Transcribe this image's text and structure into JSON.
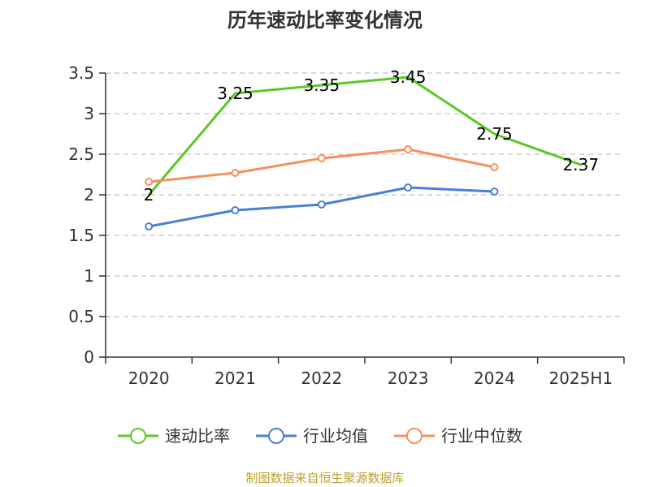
{
  "chart_data": {
    "type": "line",
    "title": "历年速动比率变化情况",
    "xlabel": "",
    "ylabel": "",
    "categories": [
      "2020",
      "2021",
      "2022",
      "2023",
      "2024",
      "2025H1"
    ],
    "ylim": [
      0,
      3.5
    ],
    "yticks": [
      "0",
      "0.5",
      "1",
      "1.5",
      "2",
      "2.5",
      "3",
      "3.5"
    ],
    "grid": true,
    "legend_position": "bottom",
    "series": [
      {
        "name": "速动比率",
        "color": "#5cc72a",
        "values": [
          2,
          3.25,
          3.35,
          3.45,
          2.75,
          2.37
        ],
        "labels": [
          "2",
          "3.25",
          "3.35",
          "3.45",
          "2.75",
          "2.37"
        ],
        "show_labels": true,
        "show_markers": false
      },
      {
        "name": "行业均值",
        "color": "#4a7fd6",
        "values": [
          1.61,
          1.81,
          1.88,
          2.09,
          2.04,
          null
        ],
        "show_labels": false,
        "show_markers": true
      },
      {
        "name": "行业中位数",
        "color": "#f59060",
        "values": [
          2.16,
          2.27,
          2.45,
          2.56,
          2.34,
          null
        ],
        "show_labels": false,
        "show_markers": true
      }
    ]
  },
  "source": "制图数据来自恒生聚源数据库"
}
